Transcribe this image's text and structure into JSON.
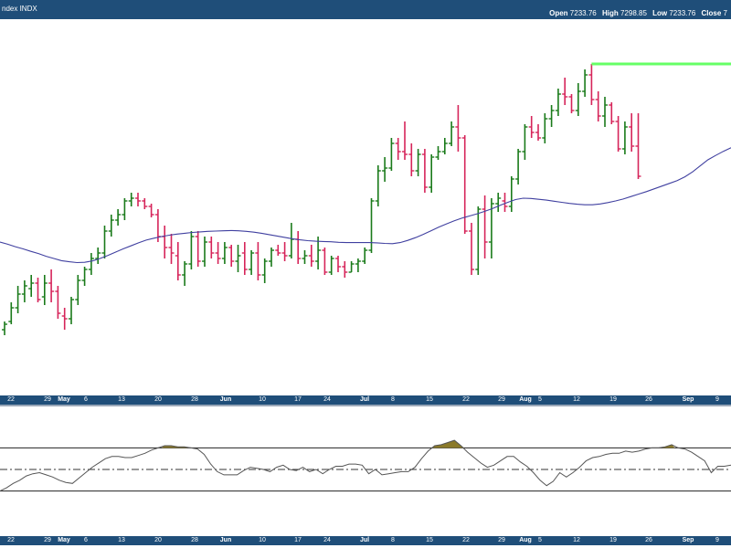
{
  "header": {
    "title": "ndex  INDX",
    "open_label": "Open",
    "open_value": "7233.76",
    "high_label": "High",
    "high_value": "7298.85",
    "low_label": "Low",
    "low_value": "7233.76",
    "close_label": "Close",
    "close_value": "7"
  },
  "colors": {
    "up": "#1a7a1a",
    "down": "#d6245a",
    "moving_average": "#4040a0",
    "header_bg": "#1f4e79",
    "highlight": "#66ff66",
    "overbought_fill": "#8b7a2a"
  },
  "x_axis": {
    "ticks": [
      {
        "label": "22",
        "month": false
      },
      {
        "label": "29",
        "month": false
      },
      {
        "label": "May",
        "month": true
      },
      {
        "label": "6",
        "month": false
      },
      {
        "label": "13",
        "month": false
      },
      {
        "label": "20",
        "month": false
      },
      {
        "label": "28",
        "month": false
      },
      {
        "label": "Jun",
        "month": true
      },
      {
        "label": "10",
        "month": false
      },
      {
        "label": "17",
        "month": false
      },
      {
        "label": "24",
        "month": false
      },
      {
        "label": "Jul",
        "month": true
      },
      {
        "label": "8",
        "month": false
      },
      {
        "label": "15",
        "month": false
      },
      {
        "label": "22",
        "month": false
      },
      {
        "label": "29",
        "month": false
      },
      {
        "label": "Aug",
        "month": true
      },
      {
        "label": "5",
        "month": false
      },
      {
        "label": "12",
        "month": false
      },
      {
        "label": "19",
        "month": false
      },
      {
        "label": "26",
        "month": false
      },
      {
        "label": "Sep",
        "month": true
      },
      {
        "label": "9",
        "month": false
      }
    ]
  },
  "chart_data": [
    {
      "type": "ohlc",
      "series_colors": "up green / down red",
      "ylim": [
        0,
        100
      ],
      "bars": [
        [
          10,
          13,
          8,
          12
        ],
        [
          13,
          20,
          12,
          18
        ],
        [
          18,
          26,
          16,
          23
        ],
        [
          23,
          28,
          20,
          26
        ],
        [
          25,
          30,
          22,
          27
        ],
        [
          27,
          29,
          20,
          21
        ],
        [
          22,
          30,
          19,
          27
        ],
        [
          27,
          32,
          20,
          24
        ],
        [
          24,
          26,
          14,
          16
        ],
        [
          15,
          18,
          10,
          14
        ],
        [
          14,
          22,
          12,
          21
        ],
        [
          21,
          30,
          19,
          28
        ],
        [
          28,
          33,
          26,
          32
        ],
        [
          32,
          38,
          30,
          36
        ],
        [
          36,
          40,
          34,
          38
        ],
        [
          38,
          48,
          36,
          46
        ],
        [
          46,
          52,
          44,
          50
        ],
        [
          50,
          54,
          48,
          52
        ],
        [
          52,
          58,
          50,
          57
        ],
        [
          57,
          60,
          55,
          58
        ],
        [
          58,
          60,
          55,
          57
        ],
        [
          57,
          58,
          54,
          55
        ],
        [
          55,
          56,
          51,
          52
        ],
        [
          52,
          54,
          42,
          44
        ],
        [
          44,
          48,
          36,
          40
        ],
        [
          40,
          45,
          34,
          38
        ],
        [
          37,
          42,
          28,
          30
        ],
        [
          30,
          35,
          26,
          34
        ],
        [
          34,
          46,
          32,
          44
        ],
        [
          44,
          46,
          33,
          35
        ],
        [
          35,
          44,
          33,
          42
        ],
        [
          42,
          44,
          36,
          38
        ],
        [
          38,
          42,
          34,
          36
        ],
        [
          36,
          42,
          34,
          40
        ],
        [
          40,
          41,
          33,
          35
        ],
        [
          35,
          41,
          31,
          37
        ],
        [
          38,
          42,
          30,
          32
        ],
        [
          32,
          39,
          30,
          38
        ],
        [
          38,
          42,
          28,
          30
        ],
        [
          30,
          36,
          27,
          35
        ],
        [
          35,
          40,
          33,
          39
        ],
        [
          39,
          41,
          37,
          38
        ],
        [
          38,
          42,
          35,
          37
        ],
        [
          37,
          49,
          36,
          43
        ],
        [
          43,
          46,
          34,
          36
        ],
        [
          36,
          39,
          34,
          37
        ],
        [
          37,
          41,
          33,
          35
        ],
        [
          35,
          44,
          32,
          39
        ],
        [
          39,
          40,
          30,
          31
        ],
        [
          31,
          37,
          30,
          36
        ],
        [
          36,
          37,
          31,
          33
        ],
        [
          33,
          35,
          29,
          31
        ],
        [
          31,
          35,
          31,
          34
        ],
        [
          34,
          36,
          31,
          35
        ],
        [
          35,
          40,
          34,
          39
        ],
        [
          39,
          58,
          38,
          57
        ],
        [
          57,
          70,
          55,
          68
        ],
        [
          68,
          73,
          64,
          69
        ],
        [
          69,
          80,
          68,
          78
        ],
        [
          78,
          80,
          72,
          75
        ],
        [
          75,
          86,
          72,
          74
        ],
        [
          74,
          78,
          66,
          68
        ],
        [
          68,
          76,
          66,
          74
        ],
        [
          74,
          76,
          60,
          62
        ],
        [
          62,
          74,
          60,
          73
        ],
        [
          73,
          77,
          72,
          75
        ],
        [
          75,
          80,
          74,
          78
        ],
        [
          78,
          86,
          77,
          84
        ],
        [
          84,
          92,
          75,
          80
        ],
        [
          80,
          81,
          45,
          46
        ],
        [
          46,
          49,
          30,
          32
        ],
        [
          32,
          55,
          30,
          54
        ],
        [
          54,
          59,
          36,
          42
        ],
        [
          42,
          58,
          36,
          56
        ],
        [
          56,
          60,
          53,
          58
        ],
        [
          57,
          60,
          53,
          55
        ],
        [
          55,
          66,
          53,
          65
        ],
        [
          65,
          76,
          63,
          75
        ],
        [
          75,
          85,
          72,
          84
        ],
        [
          84,
          88,
          80,
          82
        ],
        [
          82,
          85,
          79,
          80
        ],
        [
          80,
          89,
          78,
          87
        ],
        [
          87,
          92,
          84,
          90
        ],
        [
          90,
          98,
          88,
          96
        ],
        [
          96,
          102,
          92,
          95
        ],
        [
          95,
          96,
          89,
          90
        ],
        [
          90,
          100,
          88,
          97
        ],
        [
          97,
          105,
          95,
          103
        ],
        [
          103,
          107,
          92,
          94
        ],
        [
          94,
          97,
          86,
          88
        ],
        [
          88,
          95,
          84,
          92
        ],
        [
          92,
          93,
          85,
          86
        ],
        [
          86,
          88,
          75,
          76
        ],
        [
          76,
          86,
          74,
          84
        ],
        [
          84,
          89,
          75,
          77
        ],
        [
          77,
          89,
          65,
          66
        ]
      ],
      "moving_average": [
        42,
        41.2,
        40.3,
        39.5,
        38.6,
        37.8,
        36.8,
        36,
        35.2,
        34.8,
        34.5,
        34.6,
        35.1,
        36,
        37.1,
        38.3,
        39.5,
        40.6,
        41.7,
        42.7,
        43.4,
        44,
        44.5,
        44.9,
        45.2,
        45.5,
        45.7,
        45.9,
        46,
        46.1,
        46.2,
        46.1,
        45.9,
        45.6,
        45.2,
        44.7,
        44.2,
        43.7,
        43.2,
        42.8,
        42.5,
        42.3,
        42.2,
        42.1,
        41.9,
        41.8,
        41.8,
        41.8,
        41.8,
        41.7,
        41.5,
        41.4,
        41.8,
        42.6,
        43.6,
        44.8,
        46.1,
        47.4,
        48.6,
        49.7,
        50.7,
        51.5,
        52.3,
        53.2,
        54.2,
        55.4,
        56.5,
        57.5,
        58,
        57.9,
        57.6,
        57.3,
        56.9,
        56.5,
        56.1,
        55.8,
        55.6,
        55.6,
        55.9,
        56.4,
        57,
        57.7,
        58.6,
        59.5,
        60.4,
        61.4,
        62.4,
        63.4,
        64.4,
        65.8,
        67.6,
        69.8,
        72,
        73.6,
        75.1,
        76.4
      ]
    },
    {
      "type": "line",
      "ylim": [
        0,
        100
      ],
      "upper_band": 70,
      "lower_band": 30,
      "midline": 50,
      "values": [
        30,
        33,
        37,
        40,
        44,
        46,
        47,
        45,
        43,
        40,
        38,
        37,
        42,
        47,
        52,
        56,
        60,
        62,
        62,
        61,
        61,
        63,
        65,
        68,
        70,
        72,
        72,
        71,
        71,
        70,
        69,
        64,
        55,
        48,
        45,
        45,
        45,
        49,
        52,
        51,
        50,
        48,
        52,
        54,
        50,
        49,
        52,
        48,
        50,
        46,
        50,
        53,
        53,
        55,
        55,
        54,
        46,
        50,
        45,
        46,
        47,
        48,
        48,
        52,
        60,
        67,
        72,
        73,
        75,
        77,
        72,
        66,
        61,
        56,
        52,
        54,
        58,
        62,
        62,
        57,
        53,
        47,
        40,
        35,
        39,
        47,
        43,
        47,
        52,
        58,
        61,
        62,
        64,
        65,
        65,
        67,
        66,
        67,
        69,
        70,
        70,
        71,
        73,
        70,
        69,
        66,
        62,
        58,
        47,
        53,
        53,
        54
      ]
    }
  ]
}
